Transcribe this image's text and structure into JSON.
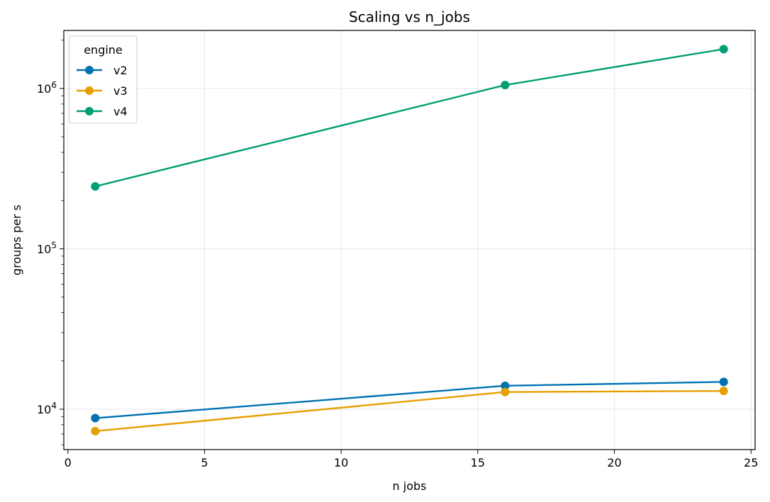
{
  "chart_data": {
    "type": "line",
    "title": "Scaling vs n_jobs",
    "xlabel": "n jobs",
    "ylabel": "groups per s",
    "x": [
      1,
      16,
      24
    ],
    "xlim": [
      -0.15,
      25.15
    ],
    "ylim": [
      5600,
      2300000
    ],
    "yscale": "log",
    "grid": true,
    "x_ticks": [
      0,
      5,
      10,
      15,
      20,
      25
    ],
    "y_ticks": [
      {
        "value": 10000,
        "base": "10",
        "exp": "4"
      },
      {
        "value": 100000,
        "base": "10",
        "exp": "5"
      },
      {
        "value": 1000000,
        "base": "10",
        "exp": "6"
      }
    ],
    "legend": {
      "title": "engine",
      "position": "upper left"
    },
    "series": [
      {
        "name": "v2",
        "color": "#0072b2",
        "values": [
          8800,
          14000,
          14800
        ]
      },
      {
        "name": "v3",
        "color": "#e69f00",
        "values": [
          7300,
          12800,
          13000
        ]
      },
      {
        "name": "v4",
        "color": "#009e73",
        "values": [
          245000,
          1050000,
          1760000
        ]
      }
    ]
  }
}
